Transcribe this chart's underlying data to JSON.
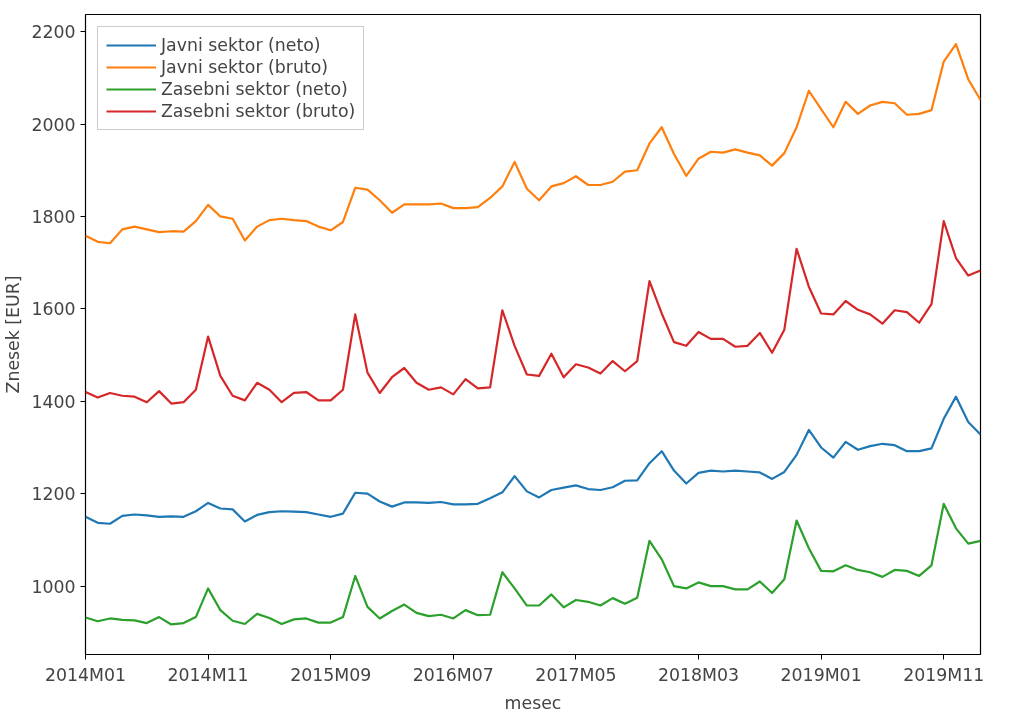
{
  "chart_data": {
    "type": "line",
    "xlabel": "mesec",
    "ylabel": "Znesek [EUR]",
    "categories": [
      "2014M01",
      null,
      null,
      null,
      null,
      null,
      null,
      null,
      null,
      null,
      "2014M11",
      null,
      null,
      null,
      null,
      null,
      null,
      null,
      null,
      null,
      "2015M09",
      null,
      null,
      null,
      null,
      null,
      null,
      null,
      null,
      null,
      "2016M07",
      null,
      null,
      null,
      null,
      null,
      null,
      null,
      null,
      null,
      "2017M05",
      null,
      null,
      null,
      null,
      null,
      null,
      null,
      null,
      null,
      "2018M03",
      null,
      null,
      null,
      null,
      null,
      null,
      null,
      null,
      null,
      "2019M01",
      null,
      null,
      null,
      null,
      null,
      null,
      null,
      null,
      null,
      "2019M11",
      null,
      null,
      null
    ],
    "series": [
      {
        "name": "Javni sektor (neto)",
        "color": "#1f77b4",
        "values": [
          1150,
          1137,
          1135,
          1152,
          1155,
          1153,
          1150,
          1151,
          1150,
          1162,
          1180,
          1168,
          1166,
          1140,
          1154,
          1160,
          1162,
          1161,
          1160,
          1155,
          1150,
          1157,
          1202,
          1200,
          1183,
          1172,
          1181,
          1181,
          1180,
          1182,
          1177,
          1177,
          1178,
          1190,
          1203,
          1238,
          1205,
          1192,
          1208,
          1213,
          1218,
          1210,
          1208,
          1214,
          1228,
          1229,
          1266,
          1292,
          1250,
          1222,
          1245,
          1250,
          1248,
          1250,
          1248,
          1246,
          1232,
          1247,
          1284,
          1338,
          1300,
          1278,
          1312,
          1295,
          1303,
          1308,
          1305,
          1292,
          1292,
          1298,
          1362,
          1410,
          1355,
          1328
        ]
      },
      {
        "name": "Javni sektor (bruto)",
        "color": "#ff7f0e",
        "values": [
          1758,
          1745,
          1742,
          1772,
          1778,
          1772,
          1766,
          1768,
          1767,
          1790,
          1825,
          1800,
          1795,
          1748,
          1778,
          1792,
          1795,
          1792,
          1790,
          1778,
          1770,
          1788,
          1862,
          1858,
          1835,
          1808,
          1826,
          1826,
          1826,
          1828,
          1818,
          1818,
          1820,
          1840,
          1865,
          1918,
          1860,
          1835,
          1865,
          1872,
          1887,
          1868,
          1868,
          1875,
          1897,
          1900,
          1958,
          1993,
          1935,
          1888,
          1925,
          1940,
          1938,
          1945,
          1938,
          1932,
          1910,
          1937,
          1993,
          2072,
          2032,
          1993,
          2048,
          2022,
          2040,
          2048,
          2045,
          2020,
          2022,
          2030,
          2135,
          2173,
          2097,
          2052
        ]
      },
      {
        "name": "Zasebni sektor (neto)",
        "color": "#2ca02c",
        "values": [
          932,
          924,
          930,
          927,
          926,
          920,
          933,
          917,
          920,
          933,
          995,
          948,
          925,
          918,
          940,
          931,
          918,
          928,
          930,
          921,
          921,
          933,
          1022,
          955,
          930,
          946,
          960,
          942,
          935,
          938,
          930,
          948,
          937,
          938,
          1030,
          995,
          958,
          958,
          982,
          954,
          970,
          966,
          958,
          974,
          962,
          975,
          1098,
          1058,
          1000,
          995,
          1008,
          1000,
          1000,
          993,
          993,
          1010,
          985,
          1015,
          1142,
          1082,
          1033,
          1032,
          1045,
          1035,
          1030,
          1020,
          1035,
          1033,
          1022,
          1045,
          1178,
          1125,
          1092,
          1098
        ]
      },
      {
        "name": "Zasebni sektor (bruto)",
        "color": "#d62728",
        "values": [
          1420,
          1408,
          1418,
          1412,
          1410,
          1398,
          1422,
          1395,
          1398,
          1425,
          1540,
          1455,
          1412,
          1402,
          1440,
          1425,
          1398,
          1418,
          1420,
          1402,
          1402,
          1425,
          1588,
          1462,
          1418,
          1452,
          1472,
          1440,
          1425,
          1430,
          1415,
          1448,
          1428,
          1430,
          1597,
          1520,
          1458,
          1455,
          1503,
          1452,
          1480,
          1473,
          1460,
          1487,
          1465,
          1487,
          1660,
          1590,
          1528,
          1520,
          1550,
          1535,
          1535,
          1518,
          1520,
          1548,
          1505,
          1555,
          1730,
          1648,
          1590,
          1588,
          1617,
          1598,
          1588,
          1568,
          1597,
          1593,
          1570,
          1610,
          1790,
          1710,
          1672,
          1683
        ]
      }
    ],
    "ylim": [
      852,
      2237
    ],
    "yticks": [
      1000,
      1200,
      1400,
      1600,
      1800,
      2000,
      2200
    ],
    "legend": "top left"
  }
}
